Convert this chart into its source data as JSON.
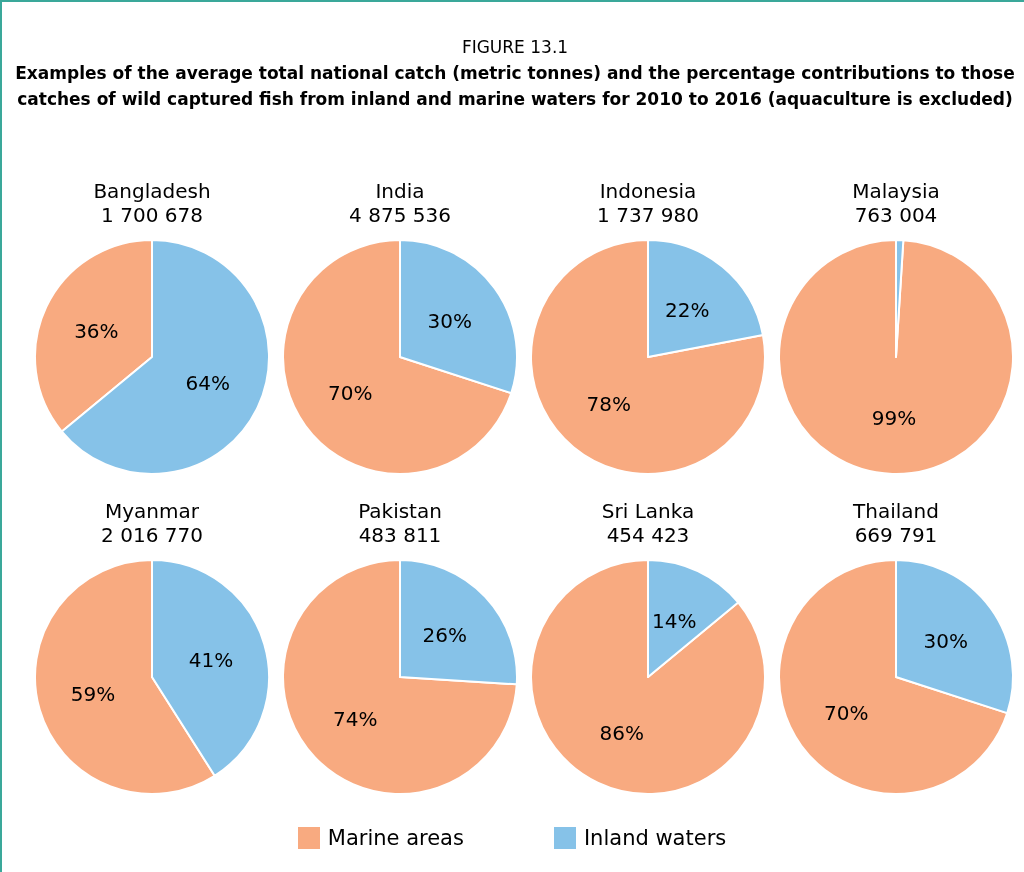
{
  "chart_data": [
    {
      "type": "pie",
      "title": "Bangladesh",
      "subtitle": "1 700 678",
      "annotations": [
        "FIGURE 13.1",
        "Examples of the average total national catch (metric tonnes) and the percentage contributions to those catches of wild captured fish from inland and marine waters for 2010 to 2016 (aquaculture is excluded)"
      ],
      "categories": [
        "Marine areas",
        "Inland waters"
      ],
      "values": [
        36,
        64
      ],
      "value_labels": [
        "36%",
        "64%"
      ],
      "colors": [
        "#f8aa80",
        "#86c2e8"
      ],
      "legend": "bottom"
    },
    {
      "type": "pie",
      "title": "India",
      "subtitle": "4 875 536",
      "categories": [
        null,
        null
      ],
      "values": [
        70,
        30
      ],
      "value_labels": [
        "70%",
        "30%"
      ],
      "colors": [
        "#f8aa80",
        "#86c2e8"
      ]
    },
    {
      "type": "pie",
      "title": "Indonesia",
      "subtitle": "1 737 980",
      "categories": [
        null,
        null
      ],
      "values": [
        78,
        22
      ],
      "value_labels": [
        "78%",
        "22%"
      ],
      "colors": [
        "#f8aa80",
        "#86c2e8"
      ]
    },
    {
      "type": "pie",
      "title": "Malaysia",
      "subtitle": "763 004",
      "categories": [
        null,
        null
      ],
      "values": [
        99,
        1
      ],
      "value_labels": [
        "99%",
        null
      ],
      "colors": [
        "#f8aa80",
        "#86c2e8"
      ]
    },
    {
      "type": "pie",
      "title": "Myanmar",
      "subtitle": "2 016 770",
      "categories": [
        null,
        null
      ],
      "values": [
        59,
        41
      ],
      "value_labels": [
        "59%",
        "41%"
      ],
      "colors": [
        "#f8aa80",
        "#86c2e8"
      ]
    },
    {
      "type": "pie",
      "title": "Pakistan",
      "subtitle": "483 811",
      "categories": [
        null,
        null
      ],
      "values": [
        74,
        26
      ],
      "value_labels": [
        "74%",
        "26%"
      ],
      "colors": [
        "#f8aa80",
        "#86c2e8"
      ]
    },
    {
      "type": "pie",
      "title": "Sri Lanka",
      "subtitle": "454 423",
      "categories": [
        null,
        null
      ],
      "values": [
        86,
        14
      ],
      "value_labels": [
        "86%",
        "14%"
      ],
      "colors": [
        "#f8aa80",
        "#86c2e8"
      ]
    },
    {
      "type": "pie",
      "title": "Thailand",
      "subtitle": "669 791",
      "categories": [
        null,
        null
      ],
      "values": [
        70,
        30
      ],
      "value_labels": [
        "70%",
        "30%"
      ],
      "colors": [
        "#f8aa80",
        "#86c2e8"
      ]
    }
  ]
}
